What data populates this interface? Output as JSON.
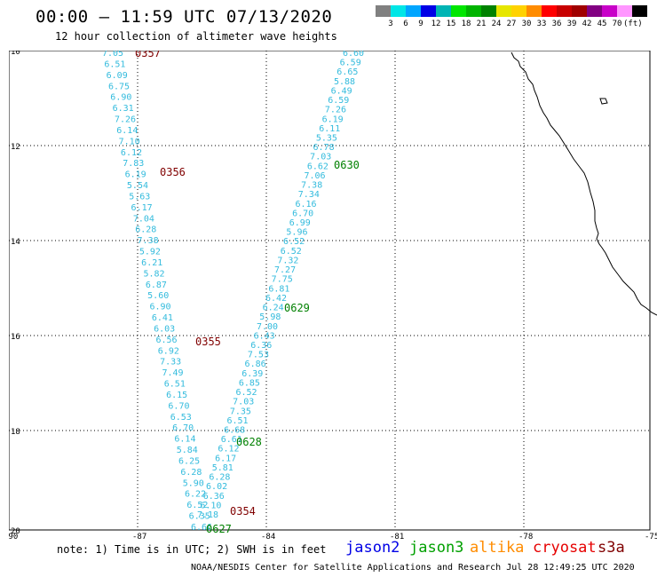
{
  "title": "00:00 – 11:59 UTC 07/13/2020",
  "subtitle": "12 hour collection of altimeter wave heights",
  "color_scale": {
    "colors": [
      "#808080",
      "#00e6e6",
      "#00a6ff",
      "#0000e6",
      "#00b4b4",
      "#00e600",
      "#00b400",
      "#008200",
      "#e6e600",
      "#ffd200",
      "#ff8c00",
      "#ff0000",
      "#c80000",
      "#a00000",
      "#820082",
      "#c800c8",
      "#ff96ff",
      "#000000"
    ],
    "labels": [
      "3",
      "6",
      "9",
      "12",
      "15",
      "18",
      "21",
      "24",
      "27",
      "30",
      "33",
      "36",
      "39",
      "42",
      "45",
      "70",
      "(ft)"
    ]
  },
  "axes": {
    "lat_labels": [
      "10",
      "12",
      "14",
      "16",
      "18",
      "20"
    ],
    "lon_labels": [
      "-90",
      "-87",
      "-84",
      "-81",
      "-78",
      "-75"
    ]
  },
  "track_color": "#33bbdd",
  "tracks": [
    {
      "values": [
        "7.05",
        "6.51",
        "6.09",
        "6.75",
        "6.90",
        "6.31",
        "7.26",
        "6.14",
        "7.10",
        "6.12",
        "7.83",
        "6.19",
        "5.54",
        "5.63",
        "6.17",
        "7.04",
        "6.28",
        "7.38",
        "5.92",
        "6.21",
        "5.82",
        "6.87",
        "5.60",
        "6.90",
        "6.41",
        "6.03",
        "6.56",
        "6.92",
        "7.33",
        "7.49",
        "6.51",
        "6.15",
        "6.70",
        "6.53",
        "6.70",
        "6.14",
        "5.84",
        "6.25",
        "6.28",
        "5.90",
        "6.22",
        "6.52",
        "6.35",
        "6.66"
      ]
    },
    {
      "values": [
        "6.60",
        "6.59",
        "6.65",
        "5.88",
        "6.49",
        "6.59",
        "7.26",
        "6.19",
        "6.11",
        "5.35",
        "6.78",
        "7.03",
        "6.62",
        "7.06",
        "7.38",
        "7.34",
        "6.16",
        "6.70",
        "6.99",
        "5.96",
        "6.52",
        "6.52",
        "7.32",
        "7.27",
        "7.75",
        "6.81",
        "6.42",
        "6.24",
        "5.98",
        "7.00",
        "6.43",
        "6.36",
        "7.53",
        "6.86",
        "6.39",
        "6.85",
        "6.52",
        "7.03",
        "7.35",
        "6.51",
        "6.68",
        "6.61",
        "6.12",
        "6.17",
        "5.81",
        "6.28",
        "6.02",
        "6.36",
        "6.10",
        "7.18"
      ]
    }
  ],
  "time_labels": [
    {
      "text": "0357",
      "color": "#800000"
    },
    {
      "text": "0356",
      "color": "#800000"
    },
    {
      "text": "0355",
      "color": "#800000"
    },
    {
      "text": "0354",
      "color": "#800000"
    },
    {
      "text": "0630",
      "color": "#008000"
    },
    {
      "text": "0629",
      "color": "#008000"
    },
    {
      "text": "0628",
      "color": "#008000"
    },
    {
      "text": "0627",
      "color": "#008000"
    }
  ],
  "note": "note: 1) Time is in UTC; 2) SWH is in feet",
  "satellites": [
    {
      "name": "jason2",
      "color": "#0000e6"
    },
    {
      "name": "jason3",
      "color": "#00a000"
    },
    {
      "name": "altika",
      "color": "#ff8c00"
    },
    {
      "name": "cryosat",
      "color": "#e60000"
    },
    {
      "name": "s3a",
      "color": "#800000"
    }
  ],
  "credit": "NOAA/NESDIS Center for Satellite Applications and Research    Jul 28 12:49:25 UTC 2020"
}
